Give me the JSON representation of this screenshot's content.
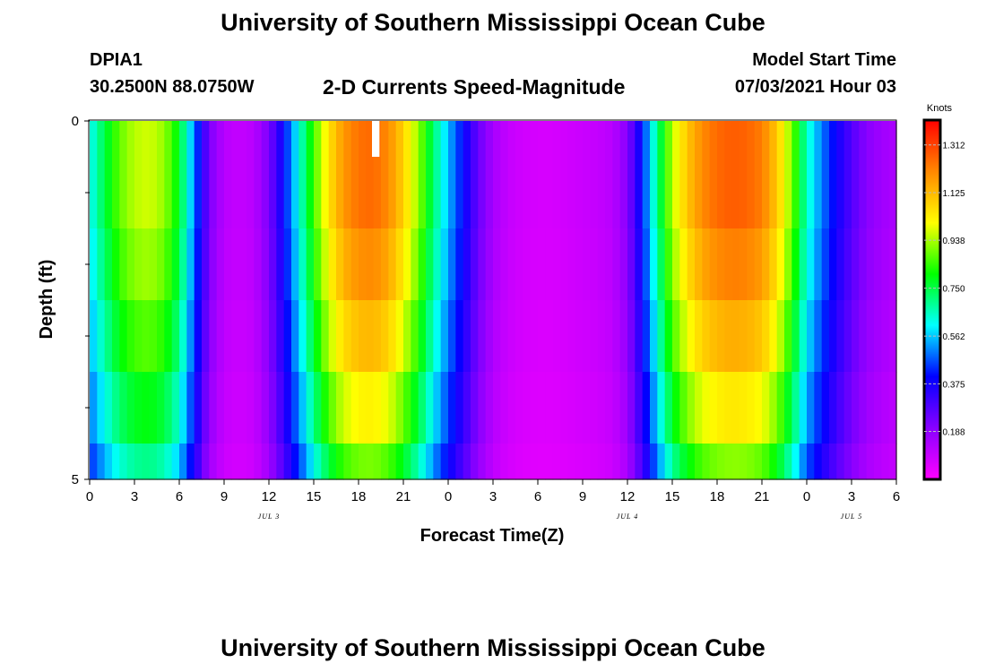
{
  "header": {
    "title": "University of Southern Mississippi Ocean Cube",
    "station": "DPIA1",
    "coordinates": "30.2500N  88.0750W",
    "subtitle": "2-D Currents Speed-Magnitude",
    "model_start_label": "Model Start Time",
    "model_start_value": "07/03/2021 Hour 03"
  },
  "footer": {
    "title": "University of Southern Mississippi Ocean Cube"
  },
  "chart_data": {
    "type": "heatmap",
    "title": "2-D Currents Speed-Magnitude",
    "xlabel": "Forecast Time(Z)",
    "ylabel": "Depth (ft)",
    "x_hours_range": [
      0,
      54
    ],
    "x_ticks": [
      {
        "h": 0,
        "label": "0"
      },
      {
        "h": 3,
        "label": "3"
      },
      {
        "h": 6,
        "label": "6"
      },
      {
        "h": 9,
        "label": "9"
      },
      {
        "h": 12,
        "label": "12"
      },
      {
        "h": 15,
        "label": "15"
      },
      {
        "h": 18,
        "label": "18"
      },
      {
        "h": 21,
        "label": "21"
      },
      {
        "h": 24,
        "label": "0"
      },
      {
        "h": 27,
        "label": "3"
      },
      {
        "h": 30,
        "label": "6"
      },
      {
        "h": 33,
        "label": "9"
      },
      {
        "h": 36,
        "label": "12"
      },
      {
        "h": 39,
        "label": "15"
      },
      {
        "h": 42,
        "label": "18"
      },
      {
        "h": 45,
        "label": "21"
      },
      {
        "h": 48,
        "label": "0"
      },
      {
        "h": 51,
        "label": "3"
      },
      {
        "h": 54,
        "label": "6"
      }
    ],
    "day_labels": [
      {
        "h": 12,
        "label": "JUL 3"
      },
      {
        "h": 36,
        "label": "JUL 4"
      },
      {
        "h": 51,
        "label": "JUL 5"
      }
    ],
    "y_range": [
      0,
      5
    ],
    "y_ticks": [
      {
        "v": 0,
        "label": "0"
      },
      {
        "v": 5,
        "label": "5"
      }
    ],
    "y_minor_ticks": [
      1,
      2,
      3,
      4
    ],
    "depth_bins": [
      0,
      0.5,
      1.5,
      2.5,
      3.5,
      4.5,
      5
    ],
    "layer_factors": [
      1.0,
      1.0,
      0.96,
      0.9,
      0.82,
      0.72
    ],
    "speed_profile_knots": [
      [
        0,
        0.6
      ],
      [
        1,
        0.75
      ],
      [
        2,
        0.88
      ],
      [
        3,
        0.95
      ],
      [
        4,
        0.97
      ],
      [
        5,
        0.92
      ],
      [
        6,
        0.78
      ],
      [
        7,
        0.5
      ],
      [
        8,
        0.22
      ],
      [
        9,
        0.12
      ],
      [
        10,
        0.1
      ],
      [
        11,
        0.12
      ],
      [
        12,
        0.22
      ],
      [
        13,
        0.4
      ],
      [
        14,
        0.62
      ],
      [
        15,
        0.85
      ],
      [
        16,
        1.05
      ],
      [
        17,
        1.18
      ],
      [
        18,
        1.24
      ],
      [
        19,
        1.25
      ],
      [
        20,
        1.2
      ],
      [
        21,
        1.08
      ],
      [
        22,
        0.92
      ],
      [
        23,
        0.72
      ],
      [
        24,
        0.55
      ],
      [
        25,
        0.4
      ],
      [
        26,
        0.25
      ],
      [
        27,
        0.15
      ],
      [
        28,
        0.1
      ],
      [
        29,
        0.08
      ],
      [
        30,
        0.07
      ],
      [
        31,
        0.07
      ],
      [
        32,
        0.08
      ],
      [
        33,
        0.09
      ],
      [
        34,
        0.1
      ],
      [
        35,
        0.12
      ],
      [
        36,
        0.2
      ],
      [
        37,
        0.42
      ],
      [
        38,
        0.7
      ],
      [
        39,
        0.95
      ],
      [
        40,
        1.1
      ],
      [
        41,
        1.2
      ],
      [
        42,
        1.25
      ],
      [
        43,
        1.27
      ],
      [
        44,
        1.26
      ],
      [
        45,
        1.22
      ],
      [
        46,
        1.1
      ],
      [
        47,
        0.9
      ],
      [
        48,
        0.65
      ],
      [
        49,
        0.5
      ],
      [
        50,
        0.38
      ],
      [
        51,
        0.28
      ],
      [
        52,
        0.2
      ],
      [
        53,
        0.16
      ],
      [
        54,
        0.14
      ]
    ],
    "missing_cell": {
      "h_start": 18.9,
      "h_end": 19.4,
      "depth_start": 0,
      "depth_end": 0.5
    },
    "colorbar": {
      "unit": "Knots",
      "min": 0.0,
      "max": 1.406,
      "ticks": [
        0.188,
        0.375,
        0.562,
        0.75,
        0.938,
        1.125,
        1.312
      ],
      "tick_labels": [
        "0.188",
        "0.375",
        "0.562",
        "0.750",
        "0.938",
        "1.125",
        "1.312"
      ],
      "colors": [
        "#ff00ff",
        "#8800ff",
        "#0000ff",
        "#00ffff",
        "#00ff00",
        "#ffff00",
        "#ff8800",
        "#ff0000"
      ]
    }
  }
}
